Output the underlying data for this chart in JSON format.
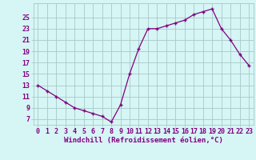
{
  "x": [
    0,
    1,
    2,
    3,
    4,
    5,
    6,
    7,
    8,
    9,
    10,
    11,
    12,
    13,
    14,
    15,
    16,
    17,
    18,
    19,
    20,
    21,
    22,
    23
  ],
  "y": [
    13,
    12,
    11,
    10,
    9,
    8.5,
    8,
    7.5,
    6.5,
    9.5,
    15,
    19.5,
    23,
    23,
    23.5,
    24,
    24.5,
    25.5,
    26,
    26.5,
    23,
    21,
    18.5,
    16.5
  ],
  "line_color": "#800080",
  "marker": "+",
  "bg_color": "#d6f5f5",
  "grid_color": "#a8c8c8",
  "xlabel": "Windchill (Refroidissement éolien,°C)",
  "yticks": [
    7,
    9,
    11,
    13,
    15,
    17,
    19,
    21,
    23,
    25
  ],
  "xticks": [
    0,
    1,
    2,
    3,
    4,
    5,
    6,
    7,
    8,
    9,
    10,
    11,
    12,
    13,
    14,
    15,
    16,
    17,
    18,
    19,
    20,
    21,
    22,
    23
  ],
  "ylim": [
    6.0,
    27.5
  ],
  "xlim": [
    -0.5,
    23.5
  ],
  "xlabel_fontsize": 6.5,
  "tick_fontsize": 6.0,
  "line_color2": "#800080",
  "tick_color": "#800080",
  "xlabel_color": "#800080"
}
